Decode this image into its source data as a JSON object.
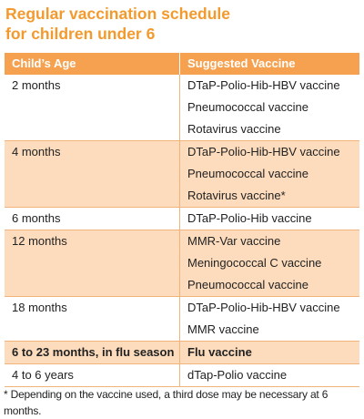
{
  "title": [
    "Regular vaccination schedule",
    "for children under 6"
  ],
  "table": {
    "header": [
      "Child’s Age",
      "Suggested Vaccine"
    ],
    "rows": [
      {
        "age": "2 months",
        "vaccines": [
          "DTaP-Polio-Hib-HBV vaccine",
          "Pneumococcal vaccine",
          "Rotavirus vaccine"
        ]
      },
      {
        "age": "4 months",
        "vaccines": [
          "DTaP-Polio-Hib-HBV vaccine",
          "Pneumococcal vaccine",
          "Rotavirus vaccine*"
        ]
      },
      {
        "age": "6 months",
        "vaccines": [
          "DTaP-Polio-Hib vaccine"
        ]
      },
      {
        "age": "12 months",
        "vaccines": [
          "MMR-Var vaccine",
          "Meningococcal C vaccine",
          "Pneumococcal vaccine"
        ]
      },
      {
        "age": "18 months",
        "vaccines": [
          "DTaP-Polio-Hib-HBV vaccine",
          "MMR vaccine"
        ]
      },
      {
        "age": "6 to 23 months, in flu season",
        "vaccines": [
          "Flu vaccine"
        ]
      },
      {
        "age": "4 to 6 years",
        "vaccines": [
          "dTap-Polio vaccine"
        ]
      }
    ]
  },
  "footnote": "* Depending on the vaccine used, a third dose may be necessary at 6 months."
}
